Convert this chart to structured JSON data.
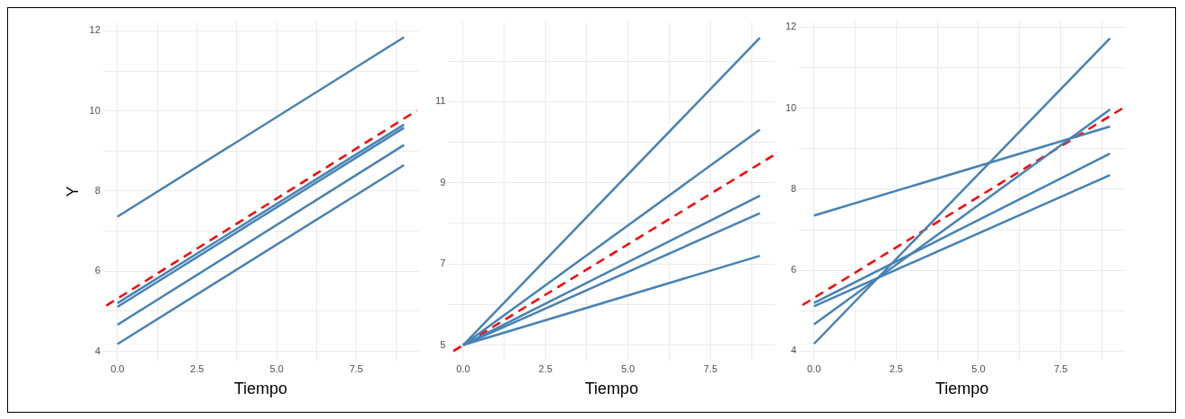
{
  "chart_data": [
    {
      "type": "line",
      "xlabel": "Tiempo",
      "ylabel": "Y",
      "xlim": [
        -0.45,
        9.45
      ],
      "ylim": [
        3.76,
        12.22
      ],
      "grid": true,
      "marker": "none",
      "xticks": [
        {
          "value": 0,
          "label": "0.0"
        },
        {
          "value": 1.25,
          "label": null
        },
        {
          "value": 2.5,
          "label": "2.5"
        },
        {
          "value": 3.75,
          "label": null
        },
        {
          "value": 5,
          "label": "5.0"
        },
        {
          "value": 6.25,
          "label": null
        },
        {
          "value": 7.5,
          "label": "7.5"
        },
        {
          "value": 8.75,
          "label": null
        }
      ],
      "yticks": [
        4,
        {
          "value": 5,
          "label": null
        },
        6,
        {
          "value": 7,
          "label": null
        },
        8,
        {
          "value": 9,
          "label": null
        },
        10,
        {
          "value": 11,
          "label": null
        },
        12
      ],
      "series": [
        {
          "color": "#4682b4",
          "line_style": "solid",
          "x": [
            0,
            9
          ],
          "values": [
            7.36,
            11.84
          ]
        },
        {
          "color": "#4682b4",
          "line_style": "solid",
          "x": [
            0,
            9
          ],
          "values": [
            5.2,
            9.66
          ]
        },
        {
          "color": "#4682b4",
          "line_style": "solid",
          "x": [
            0,
            9
          ],
          "values": [
            5.11,
            9.58
          ]
        },
        {
          "color": "#4682b4",
          "line_style": "solid",
          "x": [
            0,
            9
          ],
          "values": [
            4.66,
            9.15
          ]
        },
        {
          "color": "#4682b4",
          "line_style": "solid",
          "x": [
            0,
            9
          ],
          "values": [
            4.18,
            8.65
          ]
        },
        {
          "color": "#ff0000",
          "line_style": "dashed",
          "x": [
            -0.35,
            9.4
          ],
          "values": [
            5.14,
            10.01
          ]
        }
      ]
    },
    {
      "type": "line",
      "xlabel": "Tiempo",
      "xlim": [
        -0.45,
        9.45
      ],
      "ylim": [
        4.61,
        12.96
      ],
      "grid": true,
      "marker": "none",
      "xticks": [
        {
          "value": 0,
          "label": "0.0"
        },
        {
          "value": 1.25,
          "label": null
        },
        {
          "value": 2.5,
          "label": "2.5"
        },
        {
          "value": 3.75,
          "label": null
        },
        {
          "value": 5,
          "label": "5.0"
        },
        {
          "value": 6.25,
          "label": null
        },
        {
          "value": 7.5,
          "label": "7.5"
        },
        {
          "value": 8.75,
          "label": null
        }
      ],
      "yticks": [
        5,
        {
          "value": 6,
          "label": null
        },
        7,
        {
          "value": 8,
          "label": null
        },
        9,
        {
          "value": 10,
          "label": null
        },
        11,
        {
          "value": 12,
          "label": null
        }
      ],
      "series": [
        {
          "color": "#4682b4",
          "line_style": "solid",
          "x": [
            0,
            9
          ],
          "values": [
            5,
            12.57
          ]
        },
        {
          "color": "#4682b4",
          "line_style": "solid",
          "x": [
            0,
            9
          ],
          "values": [
            5,
            10.31
          ]
        },
        {
          "color": "#4682b4",
          "line_style": "solid",
          "x": [
            0,
            9
          ],
          "values": [
            5,
            8.68
          ]
        },
        {
          "color": "#4682b4",
          "line_style": "solid",
          "x": [
            0,
            9
          ],
          "values": [
            5,
            8.25
          ]
        },
        {
          "color": "#4682b4",
          "line_style": "solid",
          "x": [
            0,
            9
          ],
          "values": [
            5,
            7.2
          ]
        },
        {
          "color": "#ff0000",
          "line_style": "dashed",
          "x": [
            -0.3,
            9.4
          ],
          "values": [
            4.85,
            9.67
          ]
        }
      ]
    },
    {
      "type": "line",
      "xlabel": "Tiempo",
      "xlim": [
        -0.45,
        9.45
      ],
      "ylim": [
        3.76,
        12.13
      ],
      "grid": true,
      "marker": "none",
      "xticks": [
        {
          "value": 0,
          "label": "0.0"
        },
        {
          "value": 1.25,
          "label": null
        },
        {
          "value": 2.5,
          "label": "2.5"
        },
        {
          "value": 3.75,
          "label": null
        },
        {
          "value": 5,
          "label": "5.0"
        },
        {
          "value": 6.25,
          "label": null
        },
        {
          "value": 7.5,
          "label": "7.5"
        },
        {
          "value": 8.75,
          "label": null
        }
      ],
      "yticks": [
        4,
        {
          "value": 5,
          "label": null
        },
        6,
        {
          "value": 7,
          "label": null
        },
        8,
        {
          "value": 9,
          "label": null
        },
        10,
        {
          "value": 11,
          "label": null
        },
        12
      ],
      "series": [
        {
          "color": "#4682b4",
          "line_style": "solid",
          "x": [
            0,
            9
          ],
          "values": [
            7.35,
            9.55
          ]
        },
        {
          "color": "#4682b4",
          "line_style": "solid",
          "x": [
            0,
            9
          ],
          "values": [
            5.19,
            8.88
          ]
        },
        {
          "color": "#4682b4",
          "line_style": "solid",
          "x": [
            0,
            9
          ],
          "values": [
            5.11,
            8.35
          ]
        },
        {
          "color": "#4682b4",
          "line_style": "solid",
          "x": [
            0,
            9
          ],
          "values": [
            4.66,
            9.97
          ]
        },
        {
          "color": "#4682b4",
          "line_style": "solid",
          "x": [
            0,
            9
          ],
          "values": [
            4.18,
            11.73
          ]
        },
        {
          "color": "#ff0000",
          "line_style": "dashed",
          "x": [
            -0.35,
            9.4
          ],
          "values": [
            5.14,
            10.01
          ]
        }
      ]
    }
  ]
}
